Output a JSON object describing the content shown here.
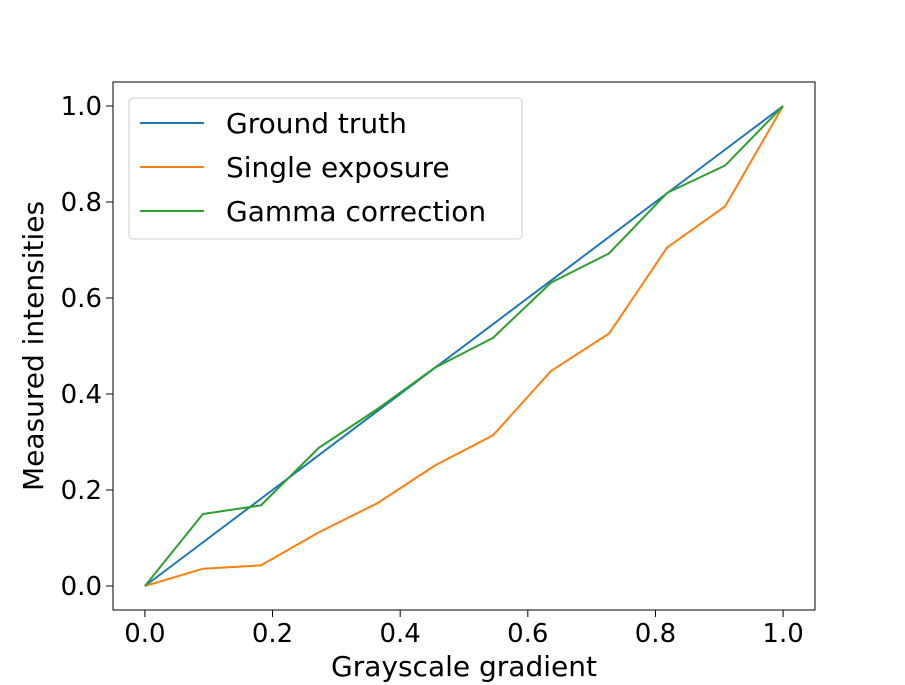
{
  "chart_data": {
    "type": "line",
    "xlabel": "Grayscale gradient",
    "ylabel": "Measured intensities",
    "xlim": [
      -0.05,
      1.05
    ],
    "ylim": [
      -0.05,
      1.05
    ],
    "xticks": [
      0.0,
      0.2,
      0.4,
      0.6,
      0.8,
      1.0
    ],
    "yticks": [
      0.0,
      0.2,
      0.4,
      0.6,
      0.8,
      1.0
    ],
    "xtick_labels": [
      "0.0",
      "0.2",
      "0.4",
      "0.6",
      "0.8",
      "1.0"
    ],
    "ytick_labels": [
      "0.0",
      "0.2",
      "0.4",
      "0.6",
      "0.8",
      "1.0"
    ],
    "grid": false,
    "legend_position": "upper-left",
    "x": [
      0.0,
      0.0909,
      0.1818,
      0.2727,
      0.3636,
      0.4545,
      0.5455,
      0.6364,
      0.7273,
      0.8182,
      0.9091,
      1.0
    ],
    "series": [
      {
        "name": "Ground truth",
        "color": "#1f77b4",
        "values": [
          0.0,
          0.0909,
          0.1818,
          0.2727,
          0.3636,
          0.4545,
          0.5455,
          0.6364,
          0.7273,
          0.8182,
          0.9091,
          1.0
        ]
      },
      {
        "name": "Single exposure",
        "color": "#ff7f0e",
        "values": [
          0.0,
          0.036,
          0.043,
          0.112,
          0.172,
          0.251,
          0.314,
          0.448,
          0.526,
          0.705,
          0.791,
          1.0
        ]
      },
      {
        "name": "Gamma correction",
        "color": "#2ca02c",
        "values": [
          0.0,
          0.15,
          0.168,
          0.288,
          0.368,
          0.455,
          0.517,
          0.632,
          0.693,
          0.819,
          0.876,
          1.0
        ]
      }
    ]
  }
}
